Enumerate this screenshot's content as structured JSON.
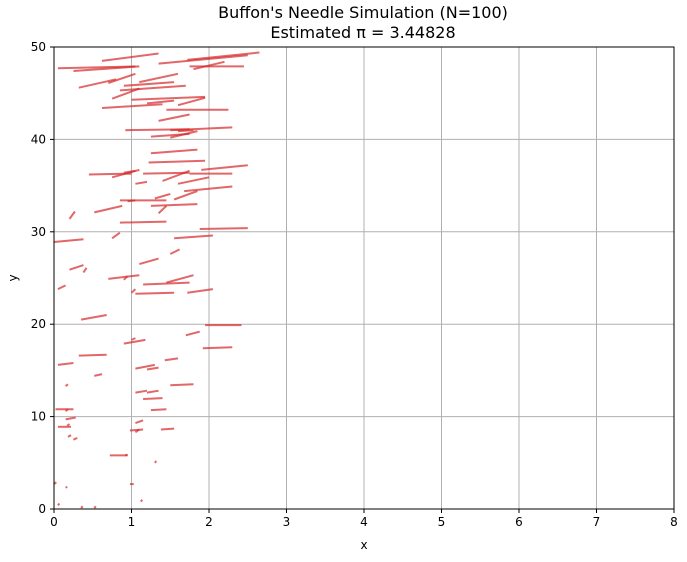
{
  "chart_data": {
    "type": "line",
    "title": "Buffon's Needle Simulation (N=100)",
    "subtitle": "Estimated π = 3.44828",
    "xlabel": "x",
    "ylabel": "y",
    "xlim": [
      0,
      8
    ],
    "ylim": [
      0,
      50
    ],
    "xticks": [
      "0",
      "1",
      "2",
      "3",
      "4",
      "5",
      "6",
      "7",
      "8"
    ],
    "yticks": [
      "0",
      "10",
      "20",
      "30",
      "40",
      "50"
    ],
    "grid": true,
    "needle_color": "#d62728",
    "grid_color": "#b0b0b0",
    "needles": [
      [
        0.62,
        48.5,
        1.35,
        49.3
      ],
      [
        0.05,
        47.7,
        1.05,
        47.9
      ],
      [
        0.25,
        47.4,
        1.1,
        47.9
      ],
      [
        1.35,
        48.2,
        2.5,
        49.1
      ],
      [
        1.72,
        48.6,
        2.65,
        49.4
      ],
      [
        1.75,
        47.9,
        2.45,
        47.9
      ],
      [
        1.8,
        47.6,
        2.2,
        48.4
      ],
      [
        0.32,
        45.6,
        0.8,
        46.5
      ],
      [
        0.7,
        46.1,
        1.05,
        47.1
      ],
      [
        1.1,
        46.2,
        1.6,
        47.1
      ],
      [
        0.9,
        45.8,
        1.55,
        46.2
      ],
      [
        0.85,
        45.3,
        1.7,
        45.8
      ],
      [
        0.75,
        44.4,
        1.1,
        45.5
      ],
      [
        1.0,
        44.3,
        1.95,
        44.6
      ],
      [
        1.2,
        43.9,
        1.55,
        44.2
      ],
      [
        0.62,
        43.4,
        1.4,
        43.8
      ],
      [
        1.45,
        43.2,
        2.25,
        43.2
      ],
      [
        1.6,
        43.7,
        1.95,
        44.5
      ],
      [
        1.35,
        42.0,
        1.75,
        42.7
      ],
      [
        0.92,
        41.0,
        1.75,
        41.1
      ],
      [
        1.5,
        41.0,
        2.3,
        41.3
      ],
      [
        1.5,
        40.2,
        1.85,
        40.9
      ],
      [
        1.25,
        40.3,
        1.75,
        40.6
      ],
      [
        1.25,
        38.5,
        1.85,
        38.9
      ],
      [
        1.22,
        37.5,
        1.95,
        37.7
      ],
      [
        1.9,
        36.7,
        2.5,
        37.2
      ],
      [
        0.45,
        36.2,
        1.0,
        36.3
      ],
      [
        0.75,
        35.9,
        1.1,
        36.7
      ],
      [
        1.15,
        36.3,
        1.75,
        36.4
      ],
      [
        1.75,
        36.3,
        2.3,
        36.3
      ],
      [
        1.4,
        35.5,
        1.75,
        36.6
      ],
      [
        1.6,
        35.2,
        2.0,
        35.9
      ],
      [
        1.68,
        34.4,
        2.3,
        34.9
      ],
      [
        1.55,
        33.5,
        1.85,
        34.4
      ],
      [
        1.3,
        33.6,
        1.5,
        34.1
      ],
      [
        0.85,
        33.4,
        1.45,
        33.4
      ],
      [
        1.25,
        32.8,
        1.85,
        33.0
      ],
      [
        1.35,
        32.0,
        1.45,
        32.8
      ],
      [
        0.52,
        32.1,
        0.88,
        32.8
      ],
      [
        0.2,
        31.4,
        0.27,
        32.2
      ],
      [
        0.85,
        31.0,
        1.45,
        31.1
      ],
      [
        1.88,
        30.3,
        2.5,
        30.4
      ],
      [
        0.0,
        28.9,
        0.38,
        29.2
      ],
      [
        1.55,
        29.3,
        2.05,
        29.6
      ],
      [
        0.75,
        29.3,
        0.85,
        29.9
      ],
      [
        1.5,
        27.6,
        1.62,
        28.1
      ],
      [
        1.1,
        26.5,
        1.35,
        27.1
      ],
      [
        0.2,
        25.9,
        0.38,
        26.4
      ],
      [
        0.38,
        25.6,
        0.42,
        26.1
      ],
      [
        0.7,
        24.9,
        1.1,
        25.3
      ],
      [
        0.9,
        24.8,
        0.95,
        25.2
      ],
      [
        1.15,
        24.3,
        1.75,
        24.5
      ],
      [
        1.45,
        24.5,
        1.8,
        25.3
      ],
      [
        0.05,
        23.8,
        0.15,
        24.2
      ],
      [
        1.0,
        23.4,
        1.05,
        23.8
      ],
      [
        1.05,
        23.3,
        1.55,
        23.4
      ],
      [
        1.72,
        23.4,
        2.05,
        23.8
      ],
      [
        0.35,
        20.5,
        0.68,
        21.0
      ],
      [
        1.95,
        19.9,
        2.42,
        19.9
      ],
      [
        1.7,
        18.8,
        1.88,
        19.2
      ],
      [
        1.92,
        17.4,
        2.3,
        17.5
      ],
      [
        0.9,
        17.9,
        1.18,
        18.3
      ],
      [
        1.0,
        18.3,
        1.05,
        18.5
      ],
      [
        0.32,
        16.6,
        0.68,
        16.7
      ],
      [
        1.43,
        16.1,
        1.6,
        16.3
      ],
      [
        0.05,
        15.6,
        0.25,
        15.8
      ],
      [
        1.05,
        15.2,
        1.3,
        15.6
      ],
      [
        1.2,
        15.1,
        1.35,
        15.3
      ],
      [
        0.52,
        14.4,
        0.62,
        14.6
      ],
      [
        1.5,
        13.4,
        1.8,
        13.5
      ],
      [
        0.15,
        13.3,
        0.18,
        13.5
      ],
      [
        1.05,
        12.6,
        1.2,
        12.8
      ],
      [
        1.2,
        12.6,
        1.35,
        12.8
      ],
      [
        1.15,
        11.9,
        1.4,
        12.0
      ],
      [
        1.25,
        10.7,
        1.45,
        10.8
      ],
      [
        0.02,
        10.8,
        0.25,
        10.8
      ],
      [
        0.15,
        10.6,
        0.18,
        10.8
      ],
      [
        0.15,
        9.7,
        0.28,
        9.9
      ],
      [
        1.05,
        9.3,
        1.15,
        9.6
      ],
      [
        0.05,
        8.9,
        0.22,
        8.9
      ],
      [
        0.17,
        9.0,
        0.2,
        9.2
      ],
      [
        0.98,
        8.5,
        1.15,
        8.6
      ],
      [
        1.38,
        8.6,
        1.55,
        8.7
      ],
      [
        1.05,
        8.3,
        1.1,
        8.6
      ],
      [
        0.18,
        7.8,
        0.22,
        8.0
      ],
      [
        0.25,
        7.5,
        0.3,
        7.7
      ],
      [
        0.72,
        5.8,
        0.95,
        5.8
      ],
      [
        0.92,
        5.8,
        0.95,
        5.9
      ],
      [
        1.3,
        5.0,
        1.32,
        5.2
      ],
      [
        0.0,
        2.7,
        0.03,
        2.9
      ],
      [
        0.15,
        2.3,
        0.17,
        2.4
      ],
      [
        0.98,
        2.7,
        1.03,
        2.7
      ],
      [
        1.12,
        0.8,
        1.14,
        1.0
      ],
      [
        0.05,
        0.4,
        0.07,
        0.6
      ],
      [
        0.35,
        0.1,
        0.37,
        0.3
      ],
      [
        0.52,
        0.1,
        0.54,
        0.3
      ],
      [
        0.9,
        36.4,
        1.05,
        36.6
      ],
      [
        1.05,
        35.2,
        1.2,
        35.4
      ],
      [
        1.6,
        40.9,
        1.8,
        41.0
      ],
      [
        0.95,
        33.3,
        1.05,
        33.4
      ]
    ]
  }
}
